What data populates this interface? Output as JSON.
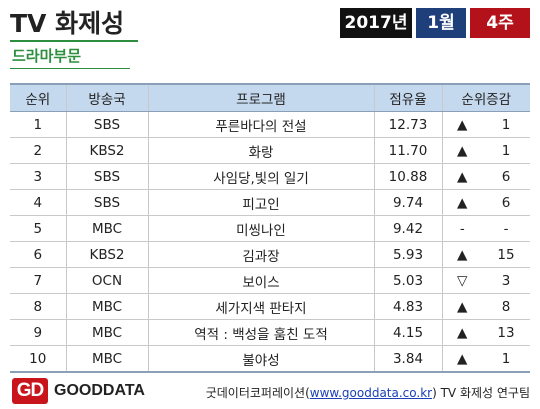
{
  "header": {
    "title": "TV 화제성",
    "subtitle": "드라마부문",
    "year": "2017년",
    "month": "1월",
    "week": "4주"
  },
  "table": {
    "columns": [
      "순위",
      "방송국",
      "프로그램",
      "점유율",
      "순위증감"
    ],
    "rows": [
      {
        "rank": "1",
        "channel": "SBS",
        "program": "푸른바다의 전설",
        "share": "12.73",
        "arrow": "▲",
        "change": "1"
      },
      {
        "rank": "2",
        "channel": "KBS2",
        "program": "화랑",
        "share": "11.70",
        "arrow": "▲",
        "change": "1"
      },
      {
        "rank": "3",
        "channel": "SBS",
        "program": "사임당,빛의 일기",
        "share": "10.88",
        "arrow": "▲",
        "change": "6"
      },
      {
        "rank": "4",
        "channel": "SBS",
        "program": "피고인",
        "share": "9.74",
        "arrow": "▲",
        "change": "6"
      },
      {
        "rank": "5",
        "channel": "MBC",
        "program": "미씽나인",
        "share": "9.42",
        "arrow": "-",
        "change": "-"
      },
      {
        "rank": "6",
        "channel": "KBS2",
        "program": "김과장",
        "share": "5.93",
        "arrow": "▲",
        "change": "15"
      },
      {
        "rank": "7",
        "channel": "OCN",
        "program": "보이스",
        "share": "5.03",
        "arrow": "▽",
        "change": "3"
      },
      {
        "rank": "8",
        "channel": "MBC",
        "program": "세가지색 판타지",
        "share": "4.83",
        "arrow": "▲",
        "change": "8"
      },
      {
        "rank": "9",
        "channel": "MBC",
        "program": "역적 : 백성을 훔친 도적",
        "share": "4.15",
        "arrow": "▲",
        "change": "13"
      },
      {
        "rank": "10",
        "channel": "MBC",
        "program": "불야성",
        "share": "3.84",
        "arrow": "▲",
        "change": "1"
      }
    ]
  },
  "footer": {
    "logo_mark": "GD",
    "logo_text": "GOODDATA",
    "credit_prefix": "굿데이터코퍼레이션(",
    "credit_link": "www.gooddata.co.kr",
    "credit_suffix": ") TV 화제성 연구팀"
  },
  "colors": {
    "accent_green": "#2d8f3e",
    "header_fill": "#c5d9ee",
    "year_box": "#111111",
    "month_box": "#1f3f7a",
    "week_box": "#b3121a",
    "logo_red": "#c8151b"
  }
}
